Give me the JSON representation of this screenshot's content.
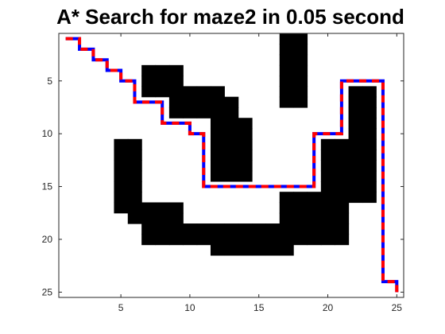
{
  "chart_data": {
    "type": "heatmap",
    "title": "A* Search for maze2 in 0.05 second",
    "xlabel": "",
    "ylabel": "",
    "xlim": [
      0.5,
      25.5
    ],
    "ylim": [
      0.5,
      25.5
    ],
    "y_reversed": true,
    "xticks": [
      5,
      10,
      15,
      20,
      25
    ],
    "yticks": [
      5,
      10,
      15,
      20,
      25
    ],
    "grid": false,
    "colors": {
      "free": "#ffffff",
      "wall": "#000000",
      "path_a": "#ff0000",
      "path_b": "#0000ff"
    },
    "walls": [
      [
        17,
        1
      ],
      [
        18,
        1
      ],
      [
        17,
        2
      ],
      [
        18,
        2
      ],
      [
        17,
        3
      ],
      [
        18,
        3
      ],
      [
        17,
        4
      ],
      [
        18,
        4
      ],
      [
        17,
        5
      ],
      [
        18,
        5
      ],
      [
        17,
        6
      ],
      [
        18,
        6
      ],
      [
        17,
        7
      ],
      [
        18,
        7
      ],
      [
        7,
        4
      ],
      [
        8,
        4
      ],
      [
        9,
        4
      ],
      [
        7,
        5
      ],
      [
        8,
        5
      ],
      [
        9,
        5
      ],
      [
        7,
        6
      ],
      [
        8,
        6
      ],
      [
        9,
        6
      ],
      [
        10,
        6
      ],
      [
        11,
        6
      ],
      [
        12,
        6
      ],
      [
        9,
        7
      ],
      [
        10,
        7
      ],
      [
        11,
        7
      ],
      [
        12,
        7
      ],
      [
        13,
        7
      ],
      [
        9,
        8
      ],
      [
        10,
        8
      ],
      [
        11,
        8
      ],
      [
        12,
        8
      ],
      [
        13,
        8
      ],
      [
        12,
        9
      ],
      [
        13,
        9
      ],
      [
        14,
        9
      ],
      [
        12,
        10
      ],
      [
        13,
        10
      ],
      [
        14,
        10
      ],
      [
        12,
        11
      ],
      [
        13,
        11
      ],
      [
        14,
        11
      ],
      [
        12,
        12
      ],
      [
        13,
        12
      ],
      [
        14,
        12
      ],
      [
        12,
        13
      ],
      [
        13,
        13
      ],
      [
        14,
        13
      ],
      [
        12,
        14
      ],
      [
        13,
        14
      ],
      [
        14,
        14
      ],
      [
        5,
        11
      ],
      [
        6,
        11
      ],
      [
        5,
        12
      ],
      [
        6,
        12
      ],
      [
        5,
        13
      ],
      [
        6,
        13
      ],
      [
        5,
        14
      ],
      [
        6,
        14
      ],
      [
        5,
        15
      ],
      [
        6,
        15
      ],
      [
        5,
        16
      ],
      [
        6,
        16
      ],
      [
        5,
        17
      ],
      [
        6,
        17
      ],
      [
        6,
        18
      ],
      [
        7,
        18
      ],
      [
        6,
        17
      ],
      [
        7,
        17
      ],
      [
        8,
        17
      ],
      [
        9,
        17
      ],
      [
        8,
        18
      ],
      [
        9,
        18
      ],
      [
        7,
        19
      ],
      [
        8,
        19
      ],
      [
        9,
        19
      ],
      [
        10,
        19
      ],
      [
        11,
        19
      ],
      [
        12,
        19
      ],
      [
        13,
        19
      ],
      [
        14,
        19
      ],
      [
        15,
        19
      ],
      [
        16,
        19
      ],
      [
        17,
        19
      ],
      [
        18,
        19
      ],
      [
        19,
        19
      ],
      [
        20,
        19
      ],
      [
        21,
        19
      ],
      [
        7,
        20
      ],
      [
        8,
        20
      ],
      [
        9,
        20
      ],
      [
        10,
        20
      ],
      [
        11,
        20
      ],
      [
        12,
        20
      ],
      [
        13,
        20
      ],
      [
        14,
        20
      ],
      [
        15,
        20
      ],
      [
        16,
        20
      ],
      [
        17,
        20
      ],
      [
        18,
        20
      ],
      [
        19,
        20
      ],
      [
        20,
        20
      ],
      [
        21,
        20
      ],
      [
        12,
        21
      ],
      [
        13,
        21
      ],
      [
        14,
        21
      ],
      [
        15,
        21
      ],
      [
        16,
        21
      ],
      [
        17,
        21
      ],
      [
        17,
        16
      ],
      [
        18,
        16
      ],
      [
        19,
        16
      ],
      [
        20,
        16
      ],
      [
        21,
        16
      ],
      [
        17,
        17
      ],
      [
        18,
        17
      ],
      [
        19,
        17
      ],
      [
        20,
        17
      ],
      [
        21,
        17
      ],
      [
        17,
        18
      ],
      [
        18,
        18
      ],
      [
        19,
        18
      ],
      [
        20,
        18
      ],
      [
        21,
        18
      ],
      [
        20,
        11
      ],
      [
        21,
        11
      ],
      [
        22,
        11
      ],
      [
        20,
        12
      ],
      [
        21,
        12
      ],
      [
        22,
        12
      ],
      [
        20,
        13
      ],
      [
        21,
        13
      ],
      [
        22,
        13
      ],
      [
        20,
        14
      ],
      [
        21,
        14
      ],
      [
        22,
        14
      ],
      [
        20,
        15
      ],
      [
        21,
        15
      ],
      [
        22,
        15
      ],
      [
        22,
        6
      ],
      [
        23,
        6
      ],
      [
        22,
        7
      ],
      [
        23,
        7
      ],
      [
        22,
        8
      ],
      [
        23,
        8
      ],
      [
        22,
        9
      ],
      [
        23,
        9
      ],
      [
        22,
        10
      ],
      [
        23,
        10
      ],
      [
        23,
        11
      ],
      [
        23,
        12
      ],
      [
        23,
        13
      ],
      [
        23,
        14
      ],
      [
        23,
        15
      ],
      [
        23,
        16
      ],
      [
        22,
        16
      ]
    ],
    "path": [
      [
        1,
        1
      ],
      [
        2,
        1
      ],
      [
        2,
        2
      ],
      [
        3,
        2
      ],
      [
        3,
        3
      ],
      [
        4,
        3
      ],
      [
        4,
        4
      ],
      [
        5,
        4
      ],
      [
        5,
        5
      ],
      [
        6,
        5
      ],
      [
        6,
        7
      ],
      [
        8,
        7
      ],
      [
        8,
        9
      ],
      [
        10,
        9
      ],
      [
        10,
        10
      ],
      [
        11,
        10
      ],
      [
        11,
        15
      ],
      [
        19,
        15
      ],
      [
        19,
        10
      ],
      [
        21,
        10
      ],
      [
        21,
        5
      ],
      [
        24,
        5
      ],
      [
        24,
        24
      ],
      [
        25,
        24
      ],
      [
        25,
        25
      ]
    ]
  }
}
